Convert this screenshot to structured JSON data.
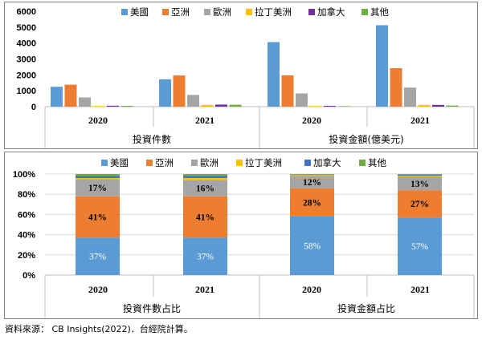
{
  "colors": {
    "us": "#5b9bd5",
    "asia": "#ed7d31",
    "europe": "#a5a5a5",
    "latam": "#ffc000",
    "canada": "#7030a0",
    "canada_pct": "#4472c4",
    "others": "#70ad47",
    "grid": "#d9d9d9",
    "axis": "#bfbfbf"
  },
  "source_note": "資料來源： CB Insights(2022)．台經院計算。",
  "chart_data": [
    {
      "type": "bar",
      "title": "",
      "legend_position": "top",
      "legend": [
        "美國",
        "亞洲",
        "歐洲",
        "拉丁美洲",
        "加拿大",
        "其他"
      ],
      "ylim": [
        0,
        6000
      ],
      "yticks": [
        "0",
        "1000",
        "2000",
        "3000",
        "4000",
        "5000",
        "6000"
      ],
      "grid": false,
      "groups": [
        {
          "label": "投資件數",
          "categories": [
            "2020",
            "2021"
          ],
          "series": [
            {
              "name": "美國",
              "values": [
                1250,
                1720
              ]
            },
            {
              "name": "亞洲",
              "values": [
                1380,
                1960
              ]
            },
            {
              "name": "歐洲",
              "values": [
                580,
                740
              ]
            },
            {
              "name": "拉丁美洲",
              "values": [
                40,
                110
              ]
            },
            {
              "name": "加拿大",
              "values": [
                60,
                130
              ]
            },
            {
              "name": "其他",
              "values": [
                50,
                120
              ]
            }
          ]
        },
        {
          "label": "投資金額(億美元)",
          "categories": [
            "2020",
            "2021"
          ],
          "series": [
            {
              "name": "美國",
              "values": [
                4060,
                5120
              ]
            },
            {
              "name": "亞洲",
              "values": [
                1970,
                2420
              ]
            },
            {
              "name": "歐洲",
              "values": [
                830,
                1200
              ]
            },
            {
              "name": "拉丁美洲",
              "values": [
                40,
                110
              ]
            },
            {
              "name": "加拿大",
              "values": [
                50,
                110
              ]
            },
            {
              "name": "其他",
              "values": [
                30,
                70
              ]
            }
          ]
        }
      ]
    },
    {
      "type": "bar",
      "stacked": true,
      "title": "",
      "legend_position": "top",
      "legend": [
        "美國",
        "亞洲",
        "歐洲",
        "拉丁美洲",
        "加拿大",
        "其他"
      ],
      "ylim": [
        0,
        100
      ],
      "yticks": [
        "0%",
        "20%",
        "40%",
        "60%",
        "80%",
        "100%"
      ],
      "grid": true,
      "groups": [
        {
          "label": "投資件數占比",
          "categories": [
            "2020",
            "2021"
          ],
          "series": [
            {
              "name": "美國",
              "values": [
                37,
                37
              ],
              "labels": [
                "37%",
                "37%"
              ]
            },
            {
              "name": "亞洲",
              "values": [
                41,
                41
              ],
              "labels": [
                "41%",
                "41%"
              ]
            },
            {
              "name": "歐洲",
              "values": [
                17,
                16
              ],
              "labels": [
                "17%",
                "16%"
              ]
            },
            {
              "name": "拉丁美洲",
              "values": [
                1,
                2
              ],
              "labels": [
                "",
                ""
              ]
            },
            {
              "name": "加拿大",
              "values": [
                2,
                2
              ],
              "labels": [
                "",
                ""
              ]
            },
            {
              "name": "其他",
              "values": [
                2,
                2
              ],
              "labels": [
                "",
                ""
              ]
            }
          ]
        },
        {
          "label": "投資金額占比",
          "categories": [
            "2020",
            "2021"
          ],
          "series": [
            {
              "name": "美國",
              "values": [
                58,
                57
              ],
              "labels": [
                "58%",
                "57%"
              ]
            },
            {
              "name": "亞洲",
              "values": [
                28,
                27
              ],
              "labels": [
                "28%",
                "27%"
              ]
            },
            {
              "name": "歐洲",
              "values": [
                12,
                13
              ],
              "labels": [
                "12%",
                "13%"
              ]
            },
            {
              "name": "拉丁美洲",
              "values": [
                1,
                1
              ],
              "labels": [
                "",
                ""
              ]
            },
            {
              "name": "加拿大",
              "values": [
                0.5,
                1
              ],
              "labels": [
                "",
                ""
              ]
            },
            {
              "name": "其他",
              "values": [
                0.5,
                1
              ],
              "labels": [
                "",
                ""
              ]
            }
          ]
        }
      ]
    }
  ]
}
